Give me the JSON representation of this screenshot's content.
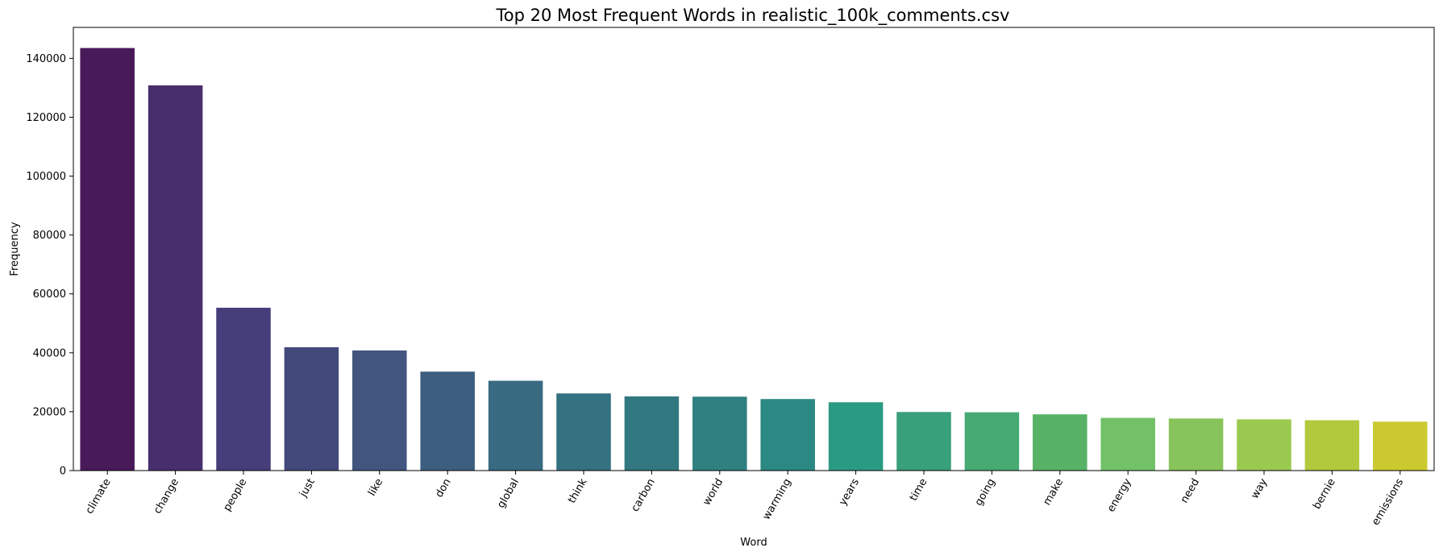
{
  "chart_data": {
    "type": "bar",
    "title": "Top 20 Most Frequent Words in realistic_100k_comments.csv",
    "xlabel": "Word",
    "ylabel": "Frequency",
    "ylim": [
      0,
      150500
    ],
    "yticks": [
      0,
      20000,
      40000,
      60000,
      80000,
      100000,
      120000,
      140000
    ],
    "grid": false,
    "legend": "none",
    "palette": "viridis",
    "categories": [
      "climate",
      "change",
      "people",
      "just",
      "like",
      "don",
      "global",
      "think",
      "carbon",
      "world",
      "warming",
      "years",
      "time",
      "going",
      "make",
      "energy",
      "need",
      "way",
      "bernie",
      "emissions"
    ],
    "values": [
      143500,
      130800,
      55300,
      41900,
      40800,
      33600,
      30500,
      26200,
      25200,
      25100,
      24300,
      23200,
      19900,
      19800,
      19100,
      17900,
      17700,
      17400,
      17100,
      16600
    ],
    "colors": [
      "#481a5a",
      "#472f6d",
      "#463e7a",
      "#44497c",
      "#41557f",
      "#3c5f80",
      "#386a82",
      "#347181",
      "#327881",
      "#2f8081",
      "#2c8882",
      "#2b9a82",
      "#38a07a",
      "#46aa72",
      "#57b266",
      "#72c167",
      "#88c45c",
      "#9ac94f",
      "#b3c93d",
      "#cac930"
    ]
  }
}
